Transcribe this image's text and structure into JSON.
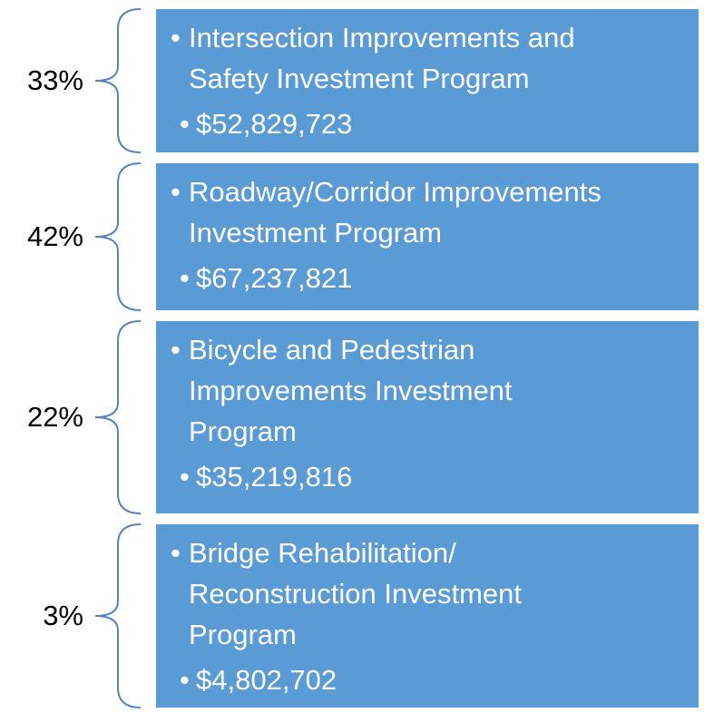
{
  "items": [
    {
      "percent": "33%",
      "title_lines": [
        "Intersection Improvements and",
        "Safety Investment Program"
      ],
      "amount": "$52,829,723"
    },
    {
      "percent": "42%",
      "title_lines": [
        "Roadway/Corridor Improvements",
        "Investment Program"
      ],
      "amount": "$67,237,821"
    },
    {
      "percent": "22%",
      "title_lines": [
        "Bicycle and Pedestrian",
        "Improvements Investment",
        "Program"
      ],
      "amount": "$35,219,816"
    },
    {
      "percent": "3%",
      "title_lines": [
        "Bridge Rehabilitation/",
        "Reconstruction Investment",
        "Program"
      ],
      "amount": "$4,802,702"
    }
  ]
}
